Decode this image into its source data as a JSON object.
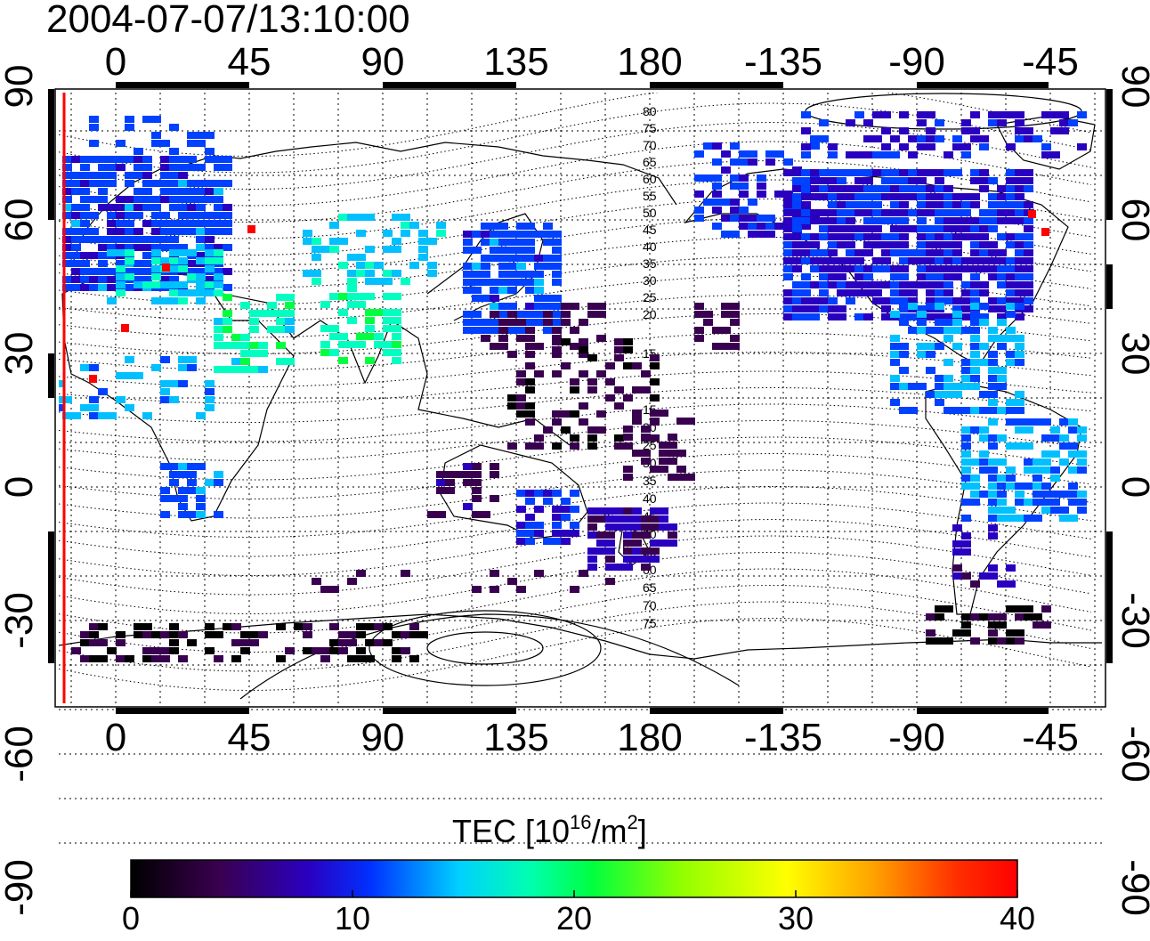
{
  "title": "2004-07-07/13:10:00",
  "map": {
    "top_lon_ticks": [
      "0",
      "45",
      "90",
      "135",
      "180",
      "-135",
      "-90",
      "-45"
    ],
    "bottom_lon_ticks": [
      "0",
      "45",
      "90",
      "135",
      "180",
      "-135",
      "-90",
      "-45"
    ],
    "left_lat_ticks": [
      "90",
      "60",
      "30",
      "0",
      "-30",
      "-60",
      "-90"
    ],
    "right_lat_ticks": [
      "90",
      "60",
      "30",
      "0",
      "-30",
      "-60",
      "-90"
    ],
    "contour_labels_north": [
      "80",
      "75",
      "70",
      "65",
      "60",
      "55",
      "50",
      "45",
      "40",
      "35",
      "30",
      "25",
      "20",
      "15"
    ],
    "contour_labels_south": [
      "15",
      "20",
      "25",
      "30",
      "35",
      "40",
      "45",
      "50",
      "55",
      "60",
      "65",
      "70",
      "75"
    ],
    "terminator_color": "#ff0000",
    "grid": true
  },
  "colorbar": {
    "label_main": "TEC  [10",
    "label_sup1": "16",
    "label_mid": "/m",
    "label_sup2": "2",
    "label_end": "]",
    "ticks": [
      "0",
      "10",
      "20",
      "30",
      "40"
    ],
    "min": 0,
    "max": 40,
    "colormap": [
      "#000000",
      "#3a0050",
      "#2a00c0",
      "#0040ff",
      "#00c0ff",
      "#00ffc0",
      "#00ff40",
      "#80ff00",
      "#ffff00",
      "#ffa000",
      "#ff4000",
      "#ff0000"
    ]
  }
}
